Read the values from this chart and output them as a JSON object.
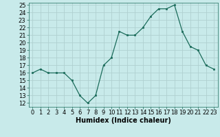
{
  "x": [
    0,
    1,
    2,
    3,
    4,
    5,
    6,
    7,
    8,
    9,
    10,
    11,
    12,
    13,
    14,
    15,
    16,
    17,
    18,
    19,
    20,
    21,
    22,
    23
  ],
  "y": [
    16.0,
    16.5,
    16.0,
    16.0,
    16.0,
    15.0,
    13.0,
    12.0,
    13.0,
    17.0,
    18.0,
    21.5,
    21.0,
    21.0,
    22.0,
    23.5,
    24.5,
    24.5,
    25.0,
    21.5,
    19.5,
    19.0,
    17.0,
    16.5
  ],
  "line_color": "#1a6b5a",
  "marker": "s",
  "markersize": 1.8,
  "linewidth": 0.9,
  "xlabel": "Humidex (Indice chaleur)",
  "xlim": [
    -0.5,
    23.5
  ],
  "ylim": [
    11.5,
    25.3
  ],
  "yticks": [
    12,
    13,
    14,
    15,
    16,
    17,
    18,
    19,
    20,
    21,
    22,
    23,
    24,
    25
  ],
  "xticks": [
    0,
    1,
    2,
    3,
    4,
    5,
    6,
    7,
    8,
    9,
    10,
    11,
    12,
    13,
    14,
    15,
    16,
    17,
    18,
    19,
    20,
    21,
    22,
    23
  ],
  "bg_color": "#c8eaea",
  "grid_color": "#b0d0d0",
  "xlabel_fontsize": 7,
  "tick_fontsize": 6
}
